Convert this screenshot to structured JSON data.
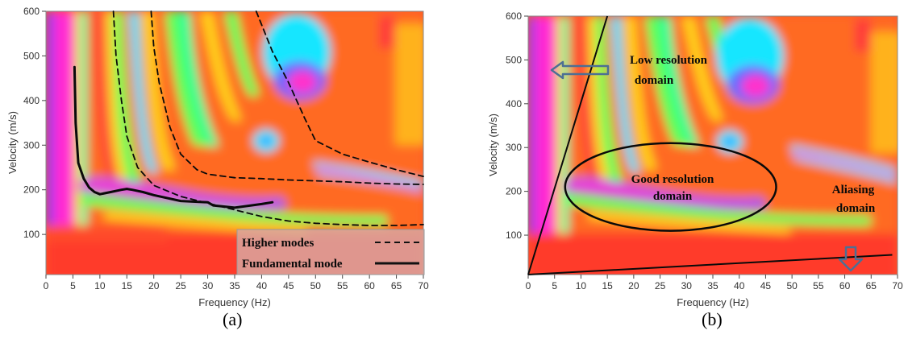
{
  "chart_data": [
    {
      "type": "heatmap",
      "panel_label": "(a)",
      "xlabel": "Frequency (Hz)",
      "ylabel": "Velocity (m/s)",
      "xlim": [
        0,
        70
      ],
      "ylim": [
        10,
        600
      ],
      "xticks": [
        0,
        5,
        10,
        15,
        20,
        25,
        30,
        35,
        40,
        45,
        50,
        55,
        60,
        65,
        70
      ],
      "yticks": [
        100,
        200,
        300,
        400,
        500,
        600
      ],
      "colormap": [
        "#ff3333",
        "#ff7a1a",
        "#ffd21a",
        "#e6ff33",
        "#5cff5c",
        "#1aff9e",
        "#19e6ff",
        "#6666ff",
        "#cc33ff",
        "#ff33cc"
      ],
      "legend": {
        "position": "bottom-right",
        "entries": [
          {
            "label": "Higher modes",
            "style": "dashed"
          },
          {
            "label": "Fundamental mode",
            "style": "solid"
          }
        ]
      },
      "series": [
        {
          "name": "Fundamental mode",
          "style": "solid",
          "x": [
            5.3,
            5.5,
            6,
            7,
            8,
            9,
            10,
            12,
            14,
            15,
            16,
            18,
            20,
            25,
            30,
            31,
            35,
            40,
            42
          ],
          "y": [
            475,
            350,
            260,
            225,
            205,
            195,
            190,
            195,
            200,
            202,
            200,
            195,
            188,
            175,
            172,
            165,
            160,
            168,
            172
          ]
        },
        {
          "name": "Higher modes",
          "style": "dashed",
          "x": [
            12.5,
            13,
            14,
            15,
            17,
            20,
            25,
            30,
            35,
            40,
            45,
            50,
            55,
            60,
            65,
            70
          ],
          "y": [
            600,
            500,
            400,
            320,
            250,
            210,
            185,
            170,
            155,
            140,
            130,
            125,
            122,
            120,
            120,
            122
          ]
        },
        {
          "name": "Higher modes",
          "style": "dashed",
          "x": [
            19.5,
            20,
            21,
            23,
            25,
            28,
            30,
            35,
            40,
            45,
            50,
            55,
            60,
            65,
            70
          ],
          "y": [
            600,
            520,
            440,
            340,
            280,
            245,
            235,
            227,
            225,
            222,
            220,
            218,
            215,
            213,
            212
          ]
        },
        {
          "name": "Higher modes",
          "style": "dashed",
          "x": [
            39,
            42,
            45,
            48,
            50,
            55,
            60,
            65,
            70
          ],
          "y": [
            600,
            510,
            440,
            360,
            310,
            280,
            262,
            245,
            230
          ]
        }
      ]
    },
    {
      "type": "heatmap",
      "panel_label": "(b)",
      "xlabel": "Frequency (Hz)",
      "ylabel": "Velocity (m/s)",
      "xlim": [
        0,
        70
      ],
      "ylim": [
        10,
        600
      ],
      "xticks": [
        0,
        5,
        10,
        15,
        20,
        25,
        30,
        35,
        40,
        45,
        50,
        55,
        60,
        65,
        70
      ],
      "yticks": [
        100,
        200,
        300,
        400,
        500,
        600
      ],
      "annotations": [
        "Low resolution domain",
        "Good resolution domain",
        "Aliasing domain"
      ],
      "boundary_lines": [
        {
          "x": [
            0,
            15
          ],
          "y": [
            10,
            600
          ]
        },
        {
          "x": [
            0,
            69
          ],
          "y": [
            10,
            55
          ]
        }
      ],
      "ellipse": {
        "center": [
          27,
          210
        ],
        "x_radius": 20,
        "y_radius": 100
      }
    }
  ],
  "panels": {
    "a": {
      "label": "(a)",
      "xlabel": "Frequency (Hz)",
      "ylabel": "Velocity (m/s)",
      "legend_higher": "Higher modes",
      "legend_fund": "Fundamental mode"
    },
    "b": {
      "label": "(b)",
      "xlabel": "Frequency (Hz)",
      "ylabel": "Velocity (m/s)",
      "low_res_line1": "Low resolution",
      "low_res_line2": "domain",
      "good_res_line1": "Good resolution",
      "good_res_line2": "domain",
      "aliasing_line1": "Aliasing",
      "aliasing_line2": "domain"
    }
  }
}
